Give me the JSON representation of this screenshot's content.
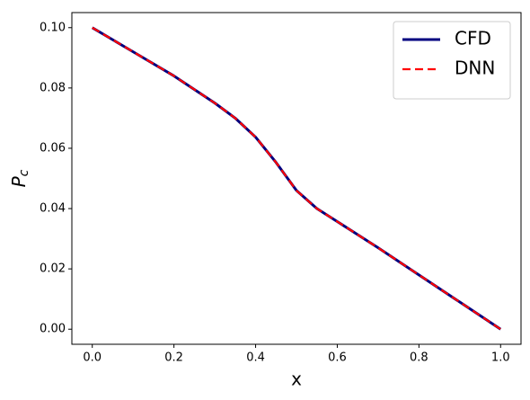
{
  "chart_data": {
    "type": "line",
    "xlabel": "x",
    "ylabel": "P_c",
    "x": [
      0.0,
      0.1,
      0.2,
      0.3,
      0.35,
      0.4,
      0.45,
      0.5,
      0.55,
      0.6,
      0.7,
      0.8,
      0.9,
      1.0
    ],
    "series": [
      {
        "name": "CFD",
        "color": "#00007f",
        "style": "solid",
        "values": [
          0.1,
          0.092,
          0.084,
          0.075,
          0.07,
          0.0637,
          0.0553,
          0.046,
          0.04,
          0.0357,
          0.027,
          0.018,
          0.009,
          0.0
        ]
      },
      {
        "name": "DNN",
        "color": "#ff0000",
        "style": "dashed",
        "values": [
          0.1,
          0.092,
          0.084,
          0.075,
          0.07,
          0.0637,
          0.0553,
          0.046,
          0.04,
          0.0357,
          0.027,
          0.018,
          0.009,
          0.0
        ]
      }
    ],
    "xlim": [
      -0.05,
      1.05
    ],
    "ylim": [
      -0.005,
      0.105
    ],
    "xticks": [
      {
        "value": 0,
        "label": "0.0"
      },
      {
        "value": 0.2,
        "label": "0.2"
      },
      {
        "value": 0.4,
        "label": "0.4"
      },
      {
        "value": 0.6,
        "label": "0.6"
      },
      {
        "value": 0.8,
        "label": "0.8"
      },
      {
        "value": 1,
        "label": "1.0"
      }
    ],
    "yticks": [
      {
        "value": 0,
        "label": "0.00"
      },
      {
        "value": 0.02,
        "label": "0.02"
      },
      {
        "value": 0.04,
        "label": "0.04"
      },
      {
        "value": 0.06,
        "label": "0.06"
      },
      {
        "value": 0.08,
        "label": "0.08"
      },
      {
        "value": 0.1,
        "label": "0.10"
      }
    ],
    "legend": "upper right",
    "grid": false
  }
}
